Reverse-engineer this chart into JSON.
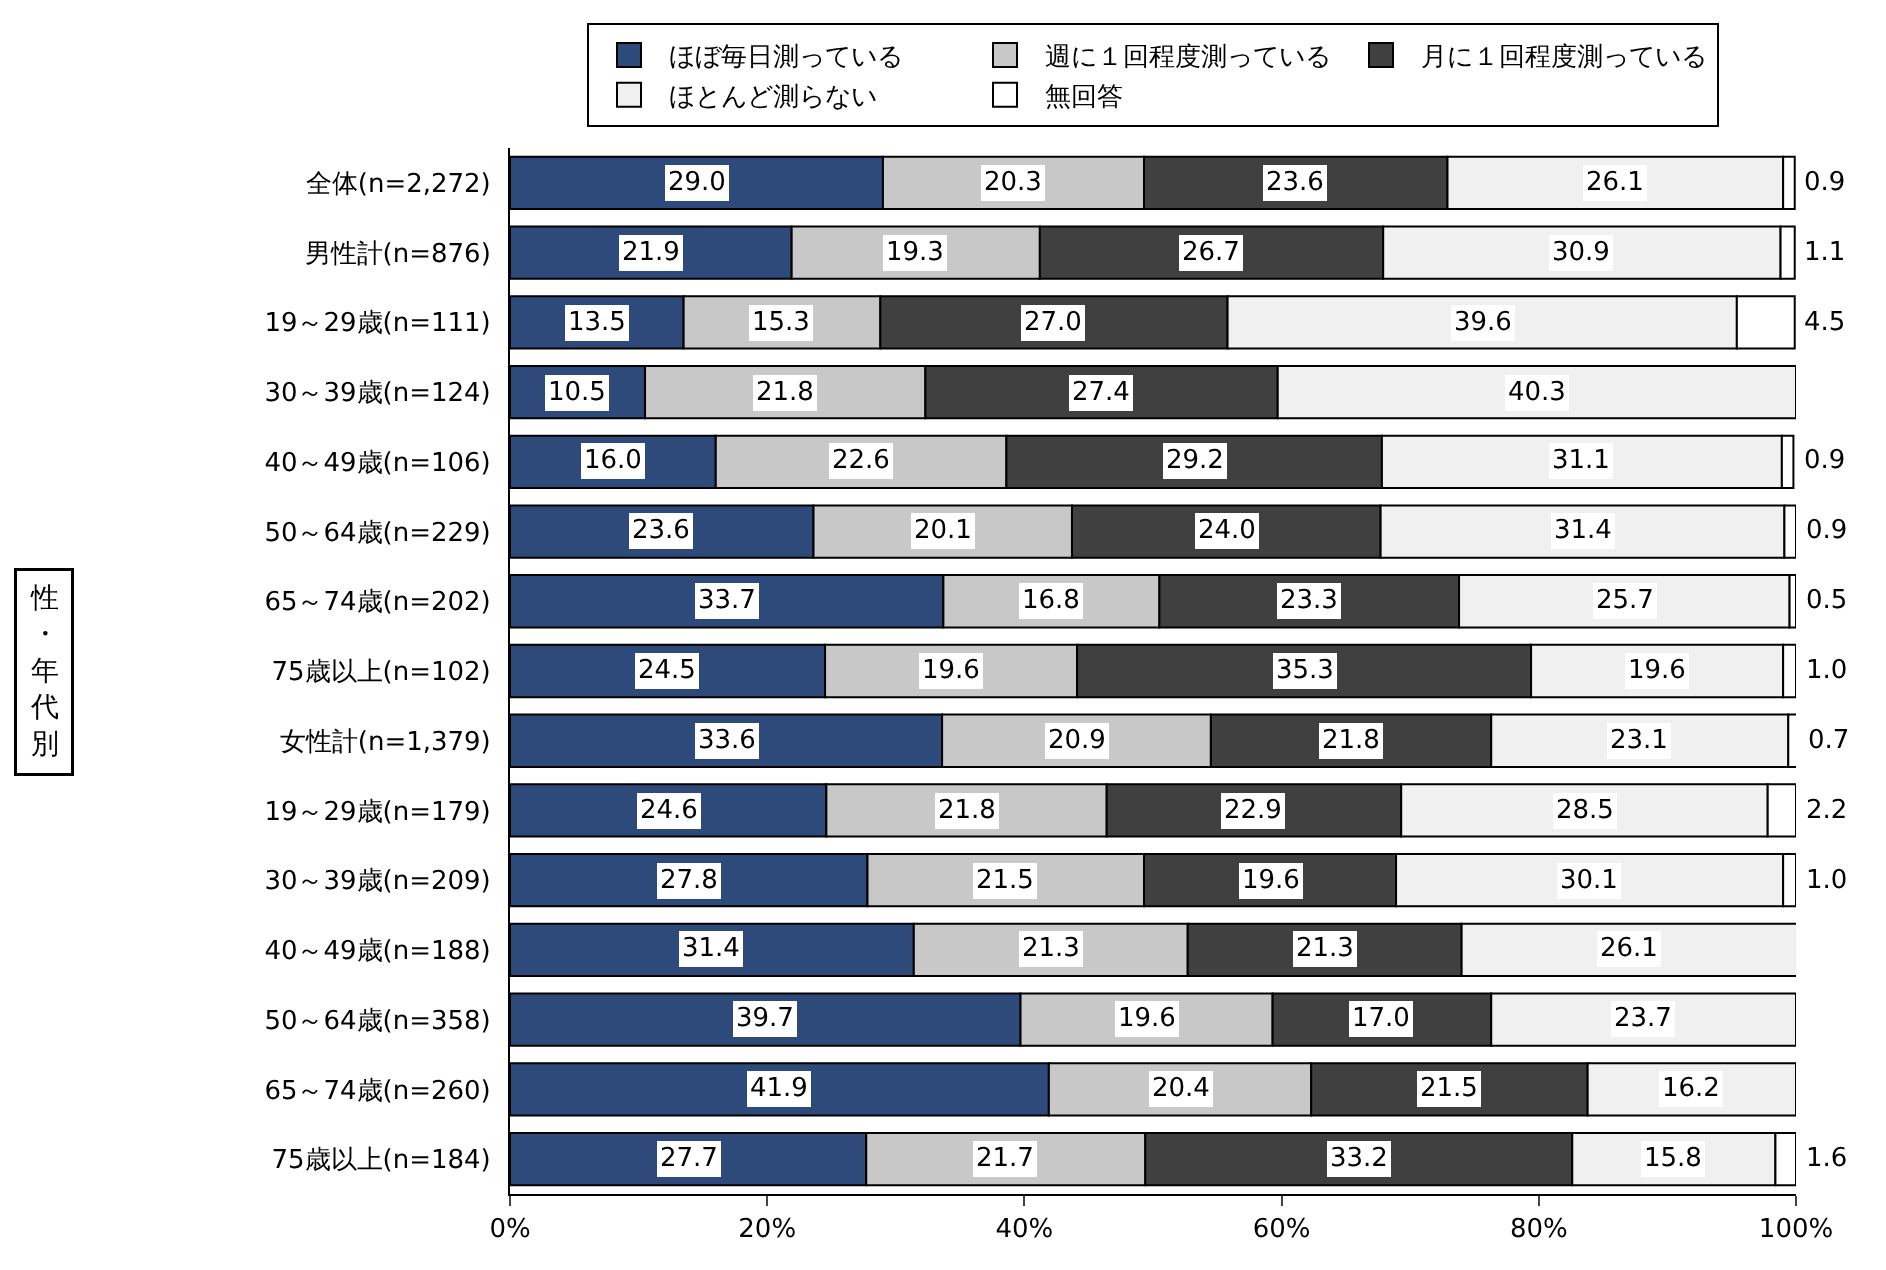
{
  "chart_data": {
    "type": "bar",
    "orientation": "horizontal",
    "stacked": true,
    "categories": [
      "全体(n=2,272)",
      "男性計(n=876)",
      "19～29歳(n=111)",
      "30～39歳(n=124)",
      "40～49歳(n=106)",
      "50～64歳(n=229)",
      "65～74歳(n=202)",
      "75歳以上(n=102)",
      "女性計(n=1,379)",
      "19～29歳(n=179)",
      "30～39歳(n=209)",
      "40～49歳(n=188)",
      "50～64歳(n=358)",
      "65～74歳(n=260)",
      "75歳以上(n=184)"
    ],
    "series": [
      {
        "name": "ほぼ毎日測っている",
        "color": "#2e4a7a",
        "values": [
          29.0,
          21.9,
          13.5,
          10.5,
          16.0,
          23.6,
          33.7,
          24.5,
          33.6,
          24.6,
          27.8,
          31.4,
          39.7,
          41.9,
          27.7
        ],
        "value_labels": [
          "29.0",
          "21.9",
          "13.5",
          "10.5",
          "16.0",
          "23.6",
          "33.7",
          "24.5",
          "33.6",
          "24.6",
          "27.8",
          "31.4",
          "39.7",
          "41.9",
          "27.7"
        ]
      },
      {
        "name": "週に１回程度測っている",
        "color": "#c8c8c8",
        "values": [
          20.3,
          19.3,
          15.3,
          21.8,
          22.6,
          20.1,
          16.8,
          19.6,
          20.9,
          21.8,
          21.5,
          21.3,
          19.6,
          20.4,
          21.7
        ],
        "value_labels": [
          "20.3",
          "19.3",
          "15.3",
          "21.8",
          "22.6",
          "20.1",
          "16.8",
          "19.6",
          "20.9",
          "21.8",
          "21.5",
          "21.3",
          "19.6",
          "20.4",
          "21.7"
        ]
      },
      {
        "name": "月に１回程度測っている",
        "color": "#404040",
        "values": [
          23.6,
          26.7,
          27.0,
          27.4,
          29.2,
          24.0,
          23.3,
          35.3,
          21.8,
          22.9,
          19.6,
          21.3,
          17.0,
          21.5,
          33.2
        ],
        "value_labels": [
          "23.6",
          "26.7",
          "27.0",
          "27.4",
          "29.2",
          "24.0",
          "23.3",
          "35.3",
          "21.8",
          "22.9",
          "19.6",
          "21.3",
          "17.0",
          "21.5",
          "33.2"
        ]
      },
      {
        "name": "ほとんど測らない",
        "color": "#f0f0f0",
        "values": [
          26.1,
          30.9,
          39.6,
          40.3,
          31.1,
          31.4,
          25.7,
          19.6,
          23.1,
          28.5,
          30.1,
          26.1,
          23.7,
          16.2,
          15.8
        ],
        "value_labels": [
          "26.1",
          "30.9",
          "39.6",
          "40.3",
          "31.1",
          "31.4",
          "25.7",
          "19.6",
          "23.1",
          "28.5",
          "30.1",
          "26.1",
          "23.7",
          "16.2",
          "15.8"
        ]
      },
      {
        "name": "無回答",
        "color": "#ffffff",
        "values": [
          0.9,
          1.1,
          4.5,
          null,
          0.9,
          0.9,
          0.5,
          1.0,
          0.7,
          2.2,
          1.0,
          null,
          null,
          null,
          1.6
        ],
        "value_labels": [
          "0.9",
          "1.1",
          "4.5",
          null,
          "0.9",
          "0.9",
          "0.5",
          "1.0",
          "0.7",
          "2.2",
          "1.0",
          null,
          null,
          null,
          "1.6"
        ]
      }
    ],
    "xlim": [
      0,
      100
    ],
    "xticks": [
      {
        "value": 0,
        "label": "0%"
      },
      {
        "value": 20,
        "label": "20%"
      },
      {
        "value": 40,
        "label": "40%"
      },
      {
        "value": 60,
        "label": "60%"
      },
      {
        "value": 80,
        "label": "80%"
      },
      {
        "value": 100,
        "label": "100%"
      }
    ],
    "legend": "top",
    "annotations": [
      "性・年代別"
    ]
  }
}
